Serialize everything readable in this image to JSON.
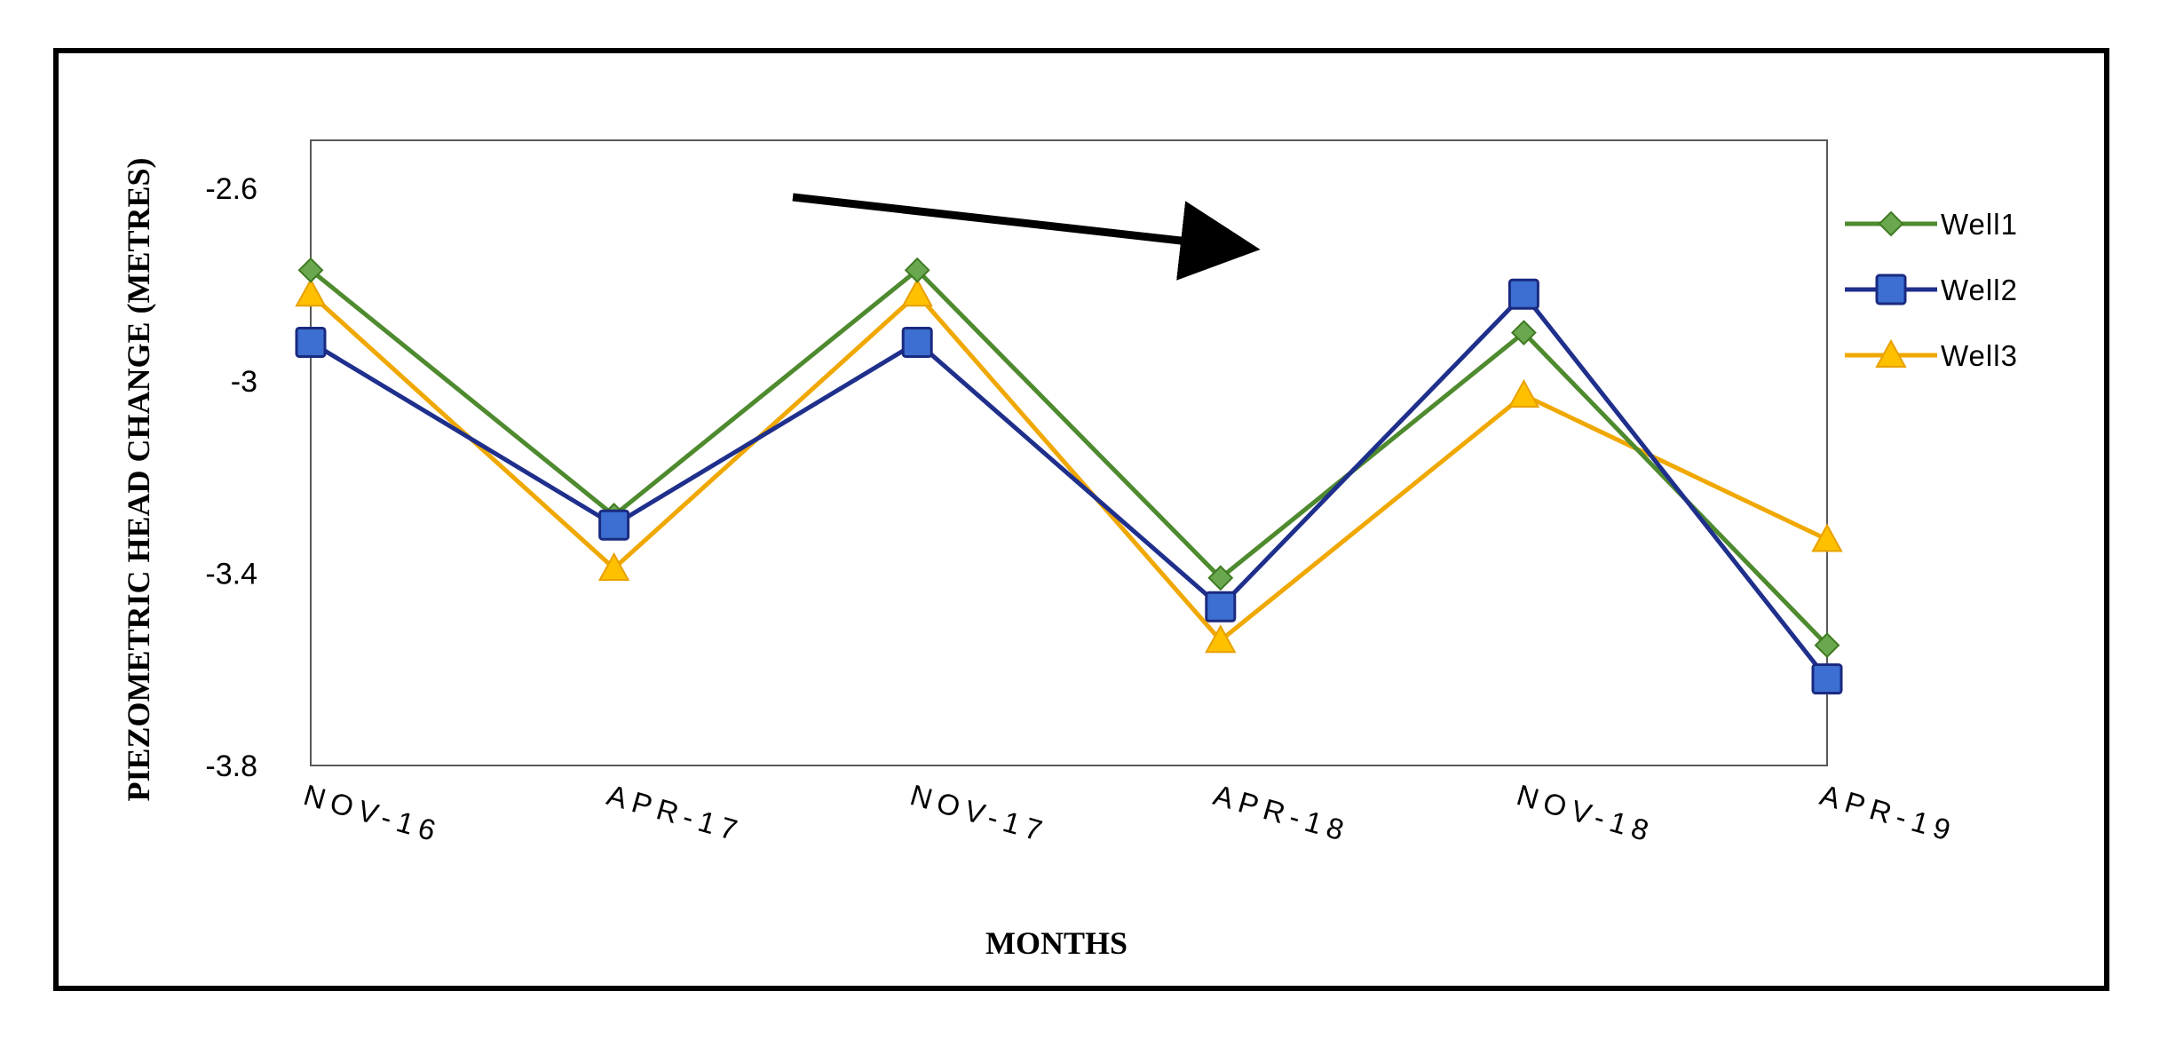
{
  "chart_data": {
    "type": "line",
    "categories": [
      "NOV-16",
      "APR-17",
      "NOV-17",
      "APR-18",
      "NOV-18",
      "APR-19"
    ],
    "series": [
      {
        "name": "Well1",
        "values": [
          -2.77,
          -3.28,
          -2.77,
          -3.41,
          -2.9,
          -3.55
        ],
        "color": "#4e8a2e",
        "marker": "diamond"
      },
      {
        "name": "Well2",
        "values": [
          -2.92,
          -3.3,
          -2.92,
          -3.47,
          -2.82,
          -3.62
        ],
        "color": "#1f2f8c",
        "marker": "square"
      },
      {
        "name": "Well3",
        "values": [
          -2.82,
          -3.39,
          -2.82,
          -3.54,
          -3.03,
          -3.33
        ],
        "color": "#f0a800",
        "marker": "triangle"
      }
    ],
    "xlabel": "MONTHS",
    "ylabel": "PIEZOMETRIC HEAD CHANGE (METRES)",
    "ylim": [
      -3.8,
      -2.5
    ],
    "yticks": [
      -2.6,
      -3,
      -3.4,
      -3.8
    ],
    "ytick_labels": [
      "-2.6",
      "-3",
      "-3.4",
      "-3.8"
    ],
    "grid": false,
    "legend_position": "right",
    "annotations": [
      "downward trend arrow"
    ]
  }
}
